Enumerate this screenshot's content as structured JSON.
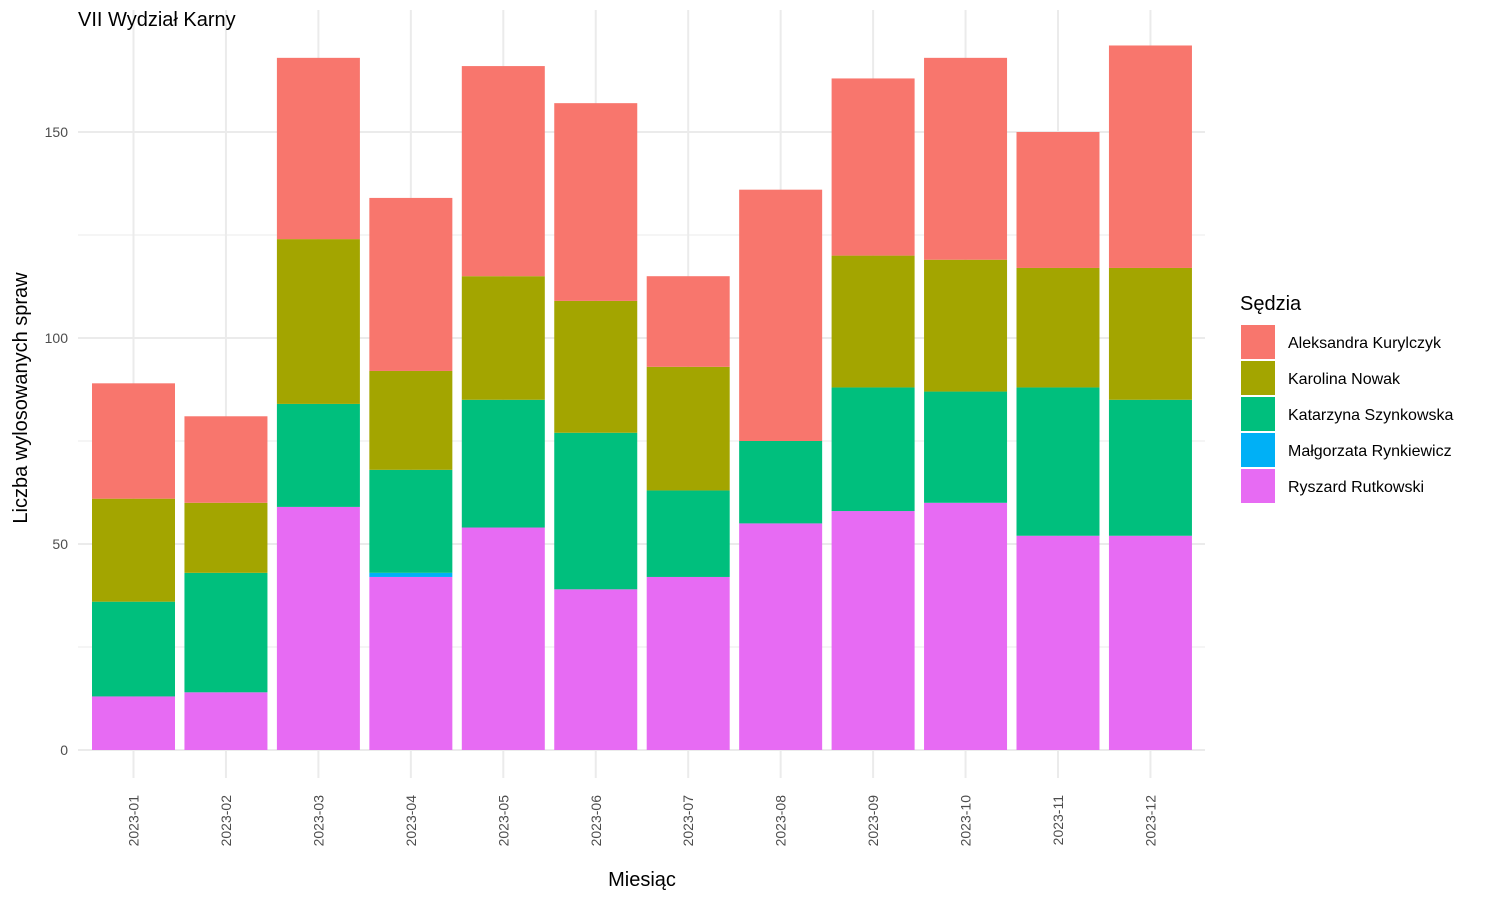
{
  "chart_data": {
    "type": "bar",
    "stacked": true,
    "title": "VII Wydział Karny",
    "xlabel": "Miesiąc",
    "ylabel": "Liczba wylosowanych spraw",
    "ylim": [
      0,
      175
    ],
    "yticks": [
      0,
      50,
      100,
      150
    ],
    "grid": true,
    "legend_position": "right",
    "legend_title": "Sędzia",
    "categories": [
      "2023-01",
      "2023-02",
      "2023-03",
      "2023-04",
      "2023-05",
      "2023-06",
      "2023-07",
      "2023-08",
      "2023-09",
      "2023-10",
      "2023-11",
      "2023-12"
    ],
    "series": [
      {
        "name": "Ryszard Rutkowski",
        "color": "#E76BF3",
        "values": [
          13,
          14,
          59,
          42,
          54,
          39,
          42,
          55,
          58,
          60,
          52,
          52
        ]
      },
      {
        "name": "Małgorzata Rynkiewicz",
        "color": "#00B0F6",
        "values": [
          0,
          0,
          0,
          1,
          0,
          0,
          0,
          0,
          0,
          0,
          0,
          0
        ]
      },
      {
        "name": "Katarzyna Szynkowska",
        "color": "#00BF7D",
        "values": [
          23,
          29,
          25,
          25,
          31,
          38,
          21,
          20,
          30,
          27,
          36,
          33
        ]
      },
      {
        "name": "Karolina Nowak",
        "color": "#A3A500",
        "values": [
          25,
          17,
          40,
          24,
          30,
          32,
          30,
          0,
          32,
          32,
          29,
          32
        ]
      },
      {
        "name": "Aleksandra Kurylczyk",
        "color": "#F8766D",
        "values": [
          28,
          21,
          44,
          42,
          51,
          48,
          22,
          61,
          43,
          49,
          33,
          54
        ]
      }
    ],
    "legend_order": [
      "Aleksandra Kurylczyk",
      "Karolina Nowak",
      "Katarzyna Szynkowska",
      "Małgorzata Rynkiewicz",
      "Ryszard Rutkowski"
    ]
  }
}
